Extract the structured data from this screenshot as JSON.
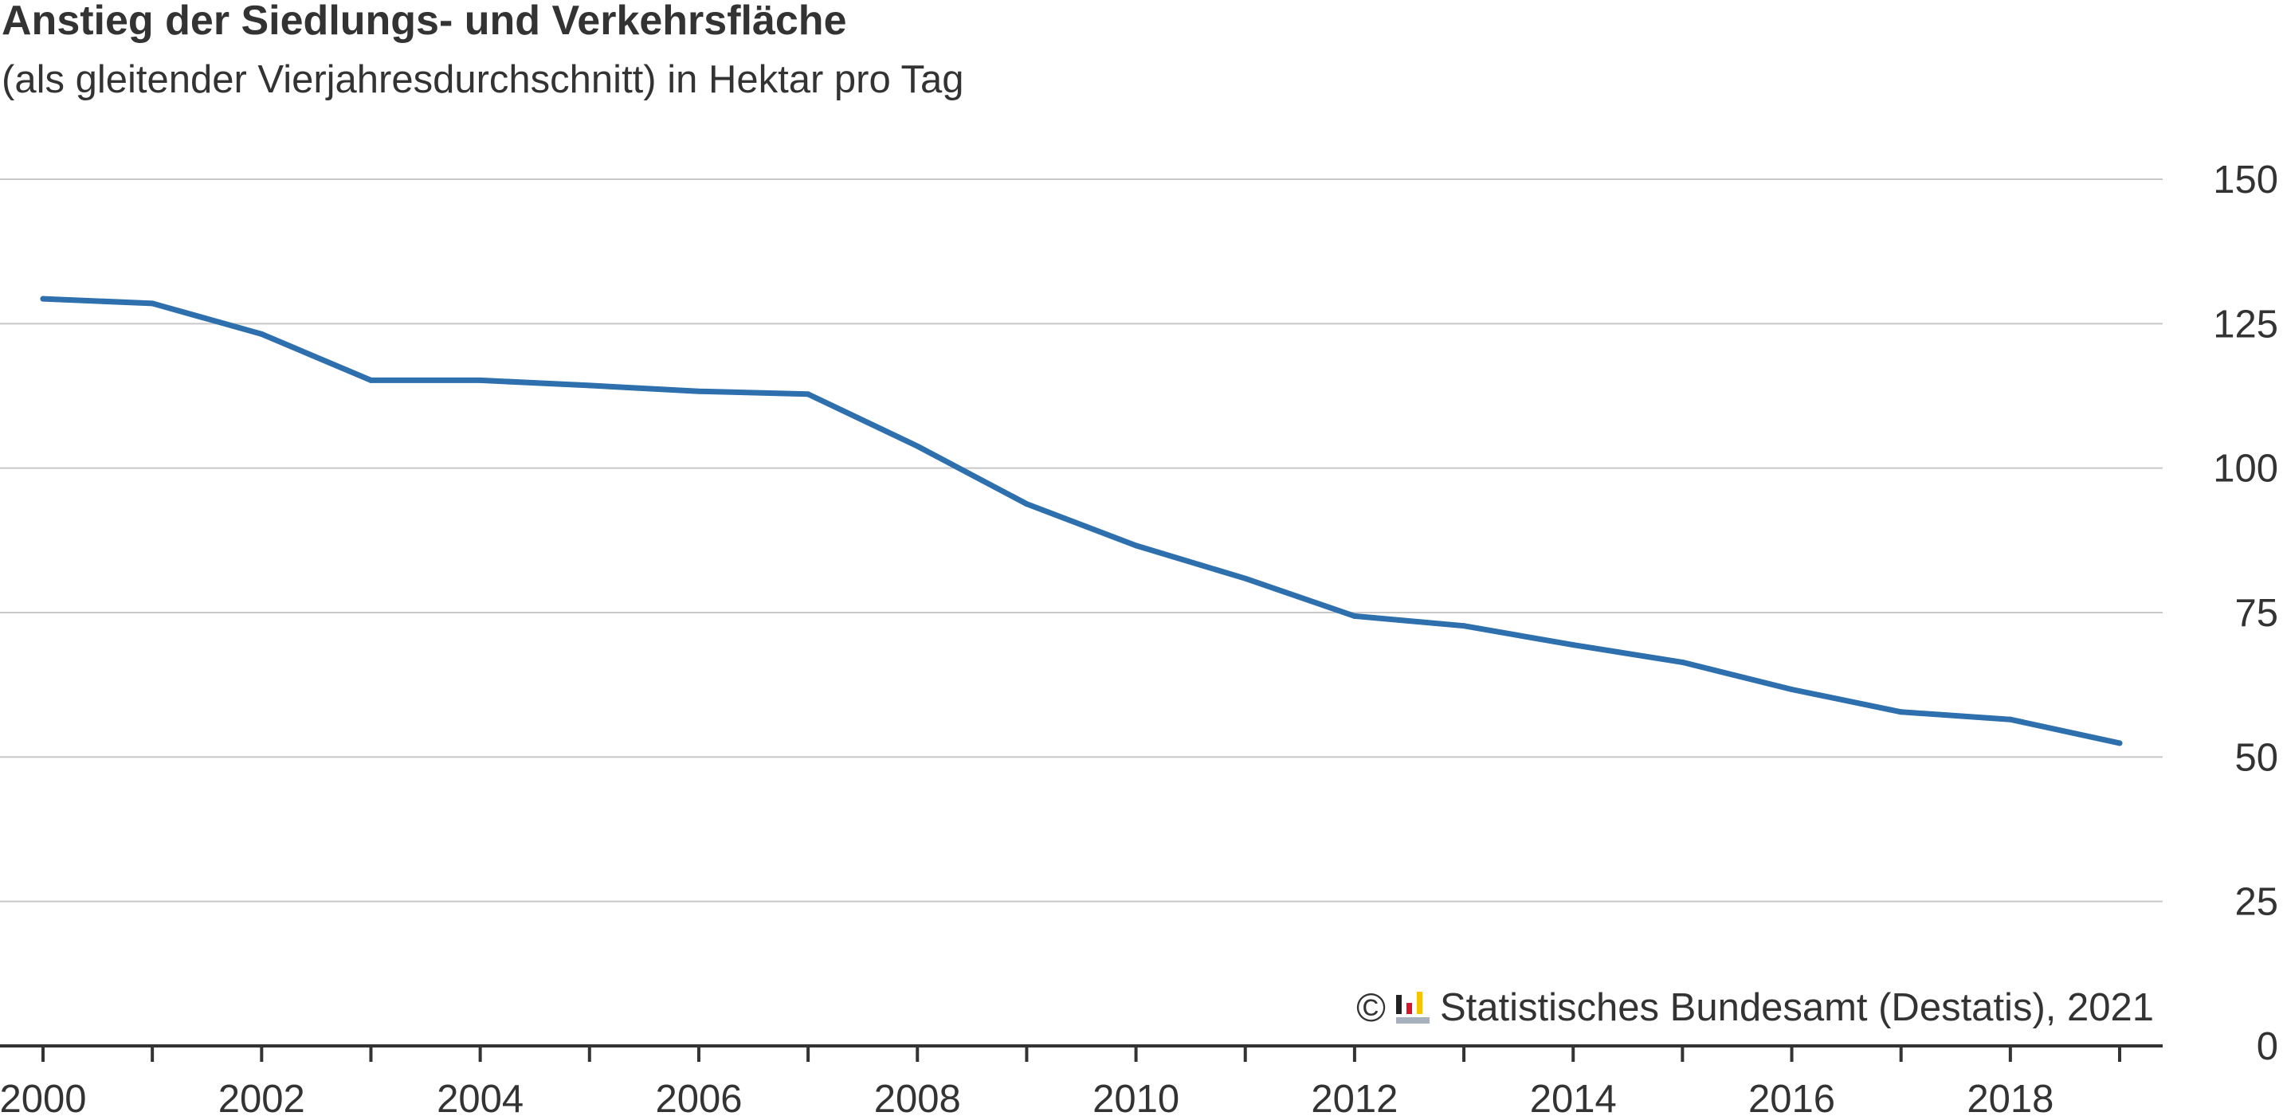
{
  "chart_data": {
    "type": "line",
    "title": "Anstieg der Siedlungs- und Verkehrsfläche",
    "subtitle": "(als gleitender Vierjahresdurchschnitt) in Hektar pro Tag",
    "x": [
      2000,
      2001,
      2002,
      2003,
      2004,
      2005,
      2006,
      2007,
      2008,
      2009,
      2010,
      2011,
      2012,
      2013,
      2014,
      2015,
      2016,
      2017,
      2018,
      2019
    ],
    "x_ticks": [
      "2000",
      "2002",
      "2004",
      "2006",
      "2008",
      "2010",
      "2012",
      "2014",
      "2016",
      "2018"
    ],
    "series": [
      {
        "values": [
          129.3,
          128.5,
          123.2,
          115.2,
          115.2,
          114.3,
          113.3,
          112.8,
          103.8,
          93.8,
          86.6,
          80.9,
          74.4,
          72.7,
          69.4,
          66.4,
          61.7,
          57.8,
          56.5,
          52.4
        ]
      }
    ],
    "y_ticks": [
      "0",
      "25",
      "50",
      "75",
      "100",
      "125",
      "150"
    ],
    "ylim": [
      0,
      150
    ],
    "xlim": [
      2000,
      2019
    ],
    "y_axis_position": "right",
    "grid": true,
    "line_color": "#2e6fad",
    "grid_color": "#c8c8c8",
    "axis_color": "#333333"
  },
  "credit": {
    "symbol": "©",
    "text": "Statistisches Bundesamt (Destatis), 2021"
  }
}
